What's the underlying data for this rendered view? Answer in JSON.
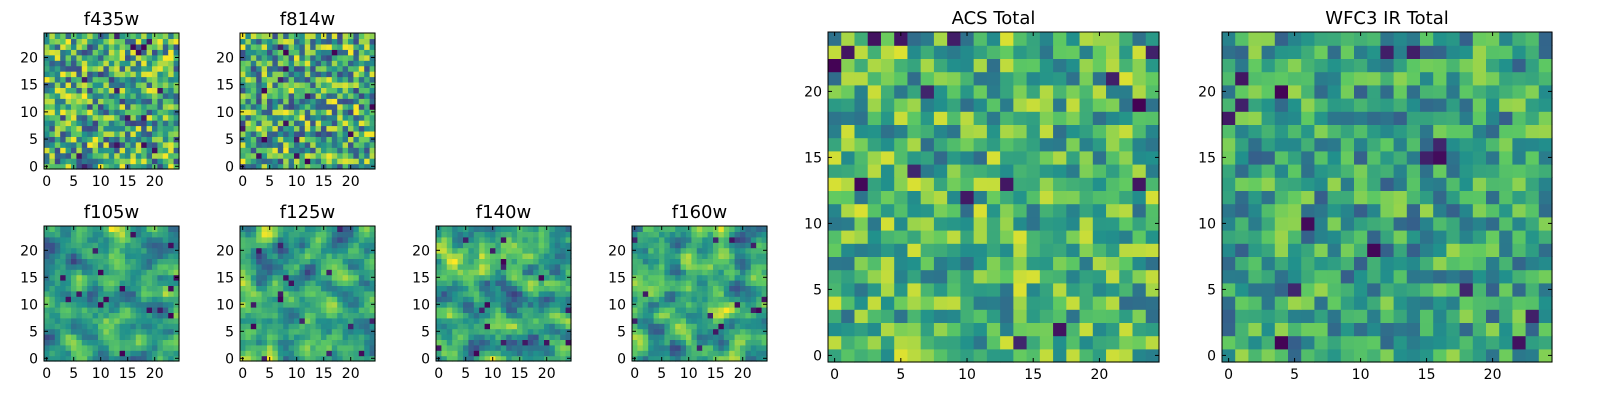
{
  "figure": {
    "panels": [
      {
        "id": "f435w",
        "title": "f435w",
        "size": "small"
      },
      {
        "id": "f814w",
        "title": "f814w",
        "size": "small"
      },
      {
        "id": "f105w",
        "title": "f105w",
        "size": "small"
      },
      {
        "id": "f125w",
        "title": "f125w",
        "size": "small"
      },
      {
        "id": "f140w",
        "title": "f140w",
        "size": "small"
      },
      {
        "id": "f160w",
        "title": "f160w",
        "size": "small"
      },
      {
        "id": "acs-total",
        "title": "ACS Total",
        "size": "large"
      },
      {
        "id": "wfc3-ir-total",
        "title": "WFC3 IR Total",
        "size": "large"
      }
    ],
    "colormap": {
      "name": "viridis",
      "stops": [
        "#440154",
        "#3b528b",
        "#21918c",
        "#5ec962",
        "#fde725"
      ]
    }
  },
  "chart_data": [
    {
      "type": "heatmap",
      "title": "f435w",
      "nx": 25,
      "ny": 25,
      "xlim": [
        0,
        24
      ],
      "ylim": [
        0,
        24
      ],
      "xticks": [
        0,
        5,
        10,
        15,
        20
      ],
      "yticks": [
        0,
        5,
        10,
        15,
        20
      ],
      "smooth": 0,
      "seed": 435,
      "value_range": [
        0.2,
        1.0
      ]
    },
    {
      "type": "heatmap",
      "title": "f814w",
      "nx": 25,
      "ny": 25,
      "xlim": [
        0,
        24
      ],
      "ylim": [
        0,
        24
      ],
      "xticks": [
        0,
        5,
        10,
        15,
        20
      ],
      "yticks": [
        0,
        5,
        10,
        15,
        20
      ],
      "smooth": 0,
      "seed": 814,
      "value_range": [
        0.2,
        1.0
      ]
    },
    {
      "type": "heatmap",
      "title": "f105w",
      "nx": 25,
      "ny": 25,
      "xlim": [
        0,
        24
      ],
      "ylim": [
        0,
        24
      ],
      "xticks": [
        0,
        5,
        10,
        15,
        20
      ],
      "yticks": [
        0,
        5,
        10,
        15,
        20
      ],
      "smooth": 1,
      "seed": 105,
      "value_range": [
        0.2,
        1.0
      ]
    },
    {
      "type": "heatmap",
      "title": "f125w",
      "nx": 25,
      "ny": 25,
      "xlim": [
        0,
        24
      ],
      "ylim": [
        0,
        24
      ],
      "xticks": [
        0,
        5,
        10,
        15,
        20
      ],
      "yticks": [
        0,
        5,
        10,
        15,
        20
      ],
      "smooth": 1,
      "seed": 125,
      "value_range": [
        0.2,
        1.0
      ]
    },
    {
      "type": "heatmap",
      "title": "f140w",
      "nx": 25,
      "ny": 25,
      "xlim": [
        0,
        24
      ],
      "ylim": [
        0,
        24
      ],
      "xticks": [
        0,
        5,
        10,
        15,
        20
      ],
      "yticks": [
        0,
        5,
        10,
        15,
        20
      ],
      "smooth": 1,
      "seed": 140,
      "value_range": [
        0.2,
        1.0
      ]
    },
    {
      "type": "heatmap",
      "title": "f160w",
      "nx": 25,
      "ny": 25,
      "xlim": [
        0,
        24
      ],
      "ylim": [
        0,
        24
      ],
      "xticks": [
        0,
        5,
        10,
        15,
        20
      ],
      "yticks": [
        0,
        5,
        10,
        15,
        20
      ],
      "smooth": 1,
      "seed": 160,
      "value_range": [
        0.2,
        1.0
      ]
    },
    {
      "type": "heatmap",
      "title": "ACS Total",
      "nx": 25,
      "ny": 25,
      "xlim": [
        0,
        24
      ],
      "ylim": [
        0,
        24
      ],
      "xticks": [
        0,
        5,
        10,
        15,
        20
      ],
      "yticks": [
        0,
        5,
        10,
        15,
        20
      ],
      "smooth": 0,
      "seed": 7,
      "value_range": [
        0.35,
        0.95
      ]
    },
    {
      "type": "heatmap",
      "title": "WFC3 IR Total",
      "nx": 25,
      "ny": 25,
      "xlim": [
        0,
        24
      ],
      "ylim": [
        0,
        24
      ],
      "xticks": [
        0,
        5,
        10,
        15,
        20
      ],
      "yticks": [
        0,
        5,
        10,
        15,
        20
      ],
      "smooth": 0,
      "seed": 3,
      "value_range": [
        0.3,
        0.85
      ]
    }
  ]
}
